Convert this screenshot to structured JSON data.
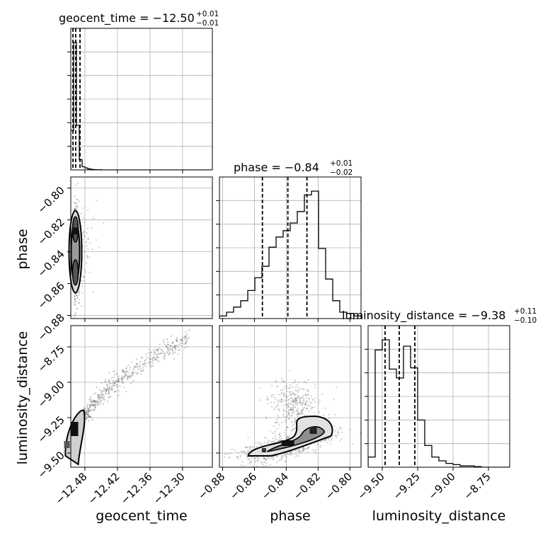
{
  "chart_data": {
    "type": "corner",
    "parameters": [
      "geocent_time",
      "phase",
      "luminosity_distance"
    ],
    "titles": [
      {
        "label": "geocent_time",
        "value": "−12.50",
        "plus": "+0.01",
        "minus": "−0.01"
      },
      {
        "label": "phase",
        "value": "−0.84",
        "plus": "+0.01",
        "minus": "−0.02"
      },
      {
        "label": "luminosity_distance",
        "value": "−9.38",
        "plus": "+0.11",
        "minus": "−0.10"
      }
    ],
    "ranges": {
      "geocent_time": [
        -12.506,
        -12.245
      ],
      "phase": [
        -0.882,
        -0.793
      ],
      "luminosity_distance": [
        -9.6,
        -8.6
      ]
    },
    "ticks": {
      "geocent_time": {
        "values": [
          -12.48,
          -12.42,
          -12.36,
          -12.3
        ],
        "labels": [
          "−12.48",
          "−12.42",
          "−12.36",
          "−12.30"
        ]
      },
      "phase": {
        "values": [
          -0.88,
          -0.86,
          -0.84,
          -0.82,
          -0.8
        ],
        "labels": [
          "−0.88",
          "−0.86",
          "−0.84",
          "−0.82",
          "−0.80"
        ]
      },
      "luminosity_distance": {
        "values": [
          -9.5,
          -9.25,
          -9.0,
          -8.75
        ],
        "labels": [
          "−9.50",
          "−9.25",
          "−9.00",
          "−8.75"
        ]
      }
    },
    "quantiles": {
      "geocent_time": [
        -12.502,
        -12.497,
        -12.489
      ],
      "phase": [
        -0.855,
        -0.839,
        -0.827
      ],
      "luminosity_distance": [
        -9.48,
        -9.38,
        -9.27
      ]
    },
    "histograms": {
      "geocent_time": {
        "edges_start": -12.506,
        "bin_width": 0.00522,
        "counts": [
          0.31,
          1.0,
          0.35,
          0.08,
          0.025,
          0.015,
          0.008,
          0.004,
          0.002,
          0.001,
          0.001,
          0.0,
          0.0,
          0.0,
          0.0,
          0.0,
          0.0,
          0.0,
          0.0,
          0.0,
          0.0,
          0.0,
          0.0,
          0.0,
          0.0,
          0.0,
          0.0,
          0.0,
          0.0,
          0.0,
          0.0,
          0.0,
          0.0,
          0.0,
          0.0,
          0.0,
          0.0,
          0.0,
          0.0,
          0.0,
          0.0,
          0.0,
          0.0,
          0.0,
          0.0,
          0.0,
          0.0,
          0.0,
          0.0,
          0.0
        ]
      },
      "phase": {
        "edges_start": -0.882,
        "bin_width": 0.00445,
        "counts": [
          0.02,
          0.05,
          0.09,
          0.14,
          0.22,
          0.32,
          0.41,
          0.56,
          0.64,
          0.69,
          0.75,
          0.84,
          0.97,
          1.0,
          0.55,
          0.31,
          0.14,
          0.05,
          0.04,
          0.02
        ]
      },
      "luminosity_distance": {
        "edges_start": -9.6,
        "bin_width": 0.05,
        "counts": [
          0.08,
          0.92,
          1.0,
          0.77,
          0.7,
          0.95,
          0.78,
          0.37,
          0.17,
          0.08,
          0.05,
          0.03,
          0.02,
          0.01,
          0.01,
          0.005,
          0.0,
          0.0,
          0.0,
          0.0
        ]
      }
    },
    "grid": true,
    "color": "#000000"
  }
}
